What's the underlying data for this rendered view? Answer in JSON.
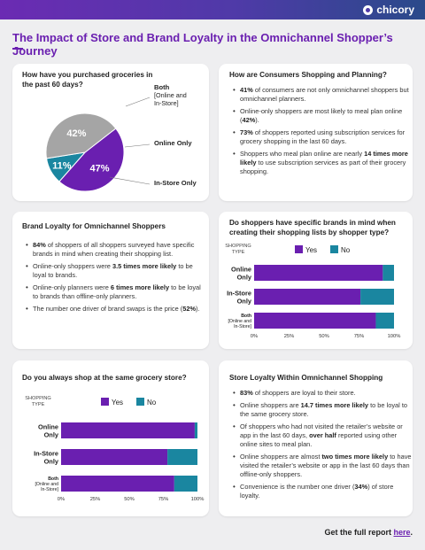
{
  "brand": {
    "logo_text": "chicory"
  },
  "title": "The Impact of Store and Brand Loyalty in the Omnichannel Shopper’s Journey",
  "colors": {
    "purple": "#6a1fb0",
    "teal": "#1a86a0",
    "gray": "#a5a5a5",
    "dark": "#222222"
  },
  "card1": {
    "question": "How have you purchased groceries in the past 60 days?"
  },
  "card2": {
    "heading": "How are Consumers Shopping and Planning?",
    "bullets": [
      {
        "bold": "41%",
        "text": " of consumers are not only omnichannel shoppers but omnichannel planners.",
        "bold2": "",
        "text2": ""
      },
      {
        "bold": "",
        "text": "Online-only shoppers are most likely to meal plan online (",
        "bold2": "42%",
        "text2": ")."
      },
      {
        "bold": "73%",
        "text": " of shoppers reported using subscription services for grocery shopping in the last 60 days.",
        "bold2": "",
        "text2": ""
      },
      {
        "bold": "",
        "text": "Shoppers who meal plan online are nearly ",
        "bold2": "14 times more likely",
        "text2": " to use subscription services as part of their grocery shopping."
      }
    ]
  },
  "card3": {
    "heading": "Brand Loyalty for Omnichannel Shoppers",
    "bullets": [
      {
        "bold": "84%",
        "text": " of shoppers of all shoppers surveyed have specific brands in mind when creating their shopping list.",
        "bold2": "",
        "text2": ""
      },
      {
        "bold": "",
        "text": "Online-only shoppers were ",
        "bold2": "3.5 times more likely",
        "text2": " to be loyal to brands."
      },
      {
        "bold": "",
        "text": "Online-only planners were ",
        "bold2": "6 times more likely",
        "text2": " to be loyal to brands than offline-only planners."
      },
      {
        "bold": "",
        "text": "The number one driver of brand swaps is the price (",
        "bold2": "52%",
        "text2": ")."
      }
    ]
  },
  "card4": {
    "question": "Do shoppers have specific brands in mind when creating their shopping lists by shopper type?"
  },
  "card5": {
    "question": "Do you always shop at the same grocery store?"
  },
  "card6": {
    "heading": "Store Loyalty Within Omnichannel Shopping",
    "bullets": [
      {
        "bold": "83%",
        "text": " of shoppers are loyal to their store.",
        "bold2": "",
        "text2": ""
      },
      {
        "bold": "",
        "text": "Online shoppers are ",
        "bold2": "14.7 times more likely",
        "text2": " to be loyal to the same grocery store."
      },
      {
        "bold": "",
        "text": "Of shoppers who had not visited the retailer’s website or app in the last 60 days, ",
        "bold2": "over half",
        "text2": " reported using other online sites to meal plan."
      },
      {
        "bold": "",
        "text": "Online shoppers are almost ",
        "bold2": "two times more likely",
        "text2": " to have visited the retailer’s website or app in the last 60 days than offline-only shoppers."
      },
      {
        "bold": "",
        "text": "Convenience is the number one driver (",
        "bold2": "34%",
        "text2": ") of store loyalty."
      }
    ]
  },
  "footer": {
    "text": "Get the full report ",
    "link": "here",
    "end": "."
  },
  "chart_data": [
    {
      "type": "pie",
      "title": "How have you purchased groceries in the past 60 days?",
      "slices": [
        {
          "label": "Both (Online and In-Store)",
          "label_lines": [
            "Both",
            "[Online and",
            "In-Store]"
          ],
          "value": 47,
          "display": "47%",
          "color": "#6a1fb0"
        },
        {
          "label": "Online Only",
          "label_lines": [
            "Online Only"
          ],
          "value": 11,
          "display": "11%",
          "color": "#1a86a0"
        },
        {
          "label": "In-Store Only",
          "label_lines": [
            "In-Store Only"
          ],
          "value": 42,
          "display": "42%",
          "color": "#a5a5a5"
        }
      ]
    },
    {
      "type": "bar",
      "orientation": "horizontal",
      "stacked": true,
      "title": "Do shoppers have specific brands in mind when creating their shopping lists by shopper type?",
      "axis_title": "SHOPPING TYPE",
      "categories": [
        {
          "label": "Online Only",
          "label_lines": [
            "Online",
            "Only"
          ]
        },
        {
          "label": "In-Store Only",
          "label_lines": [
            "In-Store",
            "Only"
          ]
        },
        {
          "label": "Both (Online and In-Store)",
          "label_lines": [
            "Both",
            "[Online and",
            "In-Store]"
          ]
        }
      ],
      "series": [
        {
          "name": "Yes",
          "color": "#6a1fb0",
          "values": [
            92,
            76,
            87
          ]
        },
        {
          "name": "No",
          "color": "#1a86a0",
          "values": [
            8,
            24,
            13
          ]
        }
      ],
      "xlim": [
        0,
        100
      ],
      "xticks": [
        "0%",
        "25%",
        "50%",
        "75%",
        "100%"
      ],
      "legend_position": "top"
    },
    {
      "type": "bar",
      "orientation": "horizontal",
      "stacked": true,
      "title": "Do you always shop at the same grocery store?",
      "axis_title": "SHOPPING TYPE",
      "categories": [
        {
          "label": "Online Only",
          "label_lines": [
            "Online",
            "Only"
          ]
        },
        {
          "label": "In-Store Only",
          "label_lines": [
            "In-Store",
            "Only"
          ]
        },
        {
          "label": "Both (Online and In-Store)",
          "label_lines": [
            "Both",
            "[Online and",
            "In-Store]"
          ]
        }
      ],
      "series": [
        {
          "name": "Yes",
          "color": "#6a1fb0",
          "values": [
            98,
            78,
            83
          ]
        },
        {
          "name": "No",
          "color": "#1a86a0",
          "values": [
            2,
            22,
            17
          ]
        }
      ],
      "xlim": [
        0,
        100
      ],
      "xticks": [
        "0%",
        "25%",
        "50%",
        "75%",
        "100%"
      ],
      "legend_position": "top"
    }
  ]
}
